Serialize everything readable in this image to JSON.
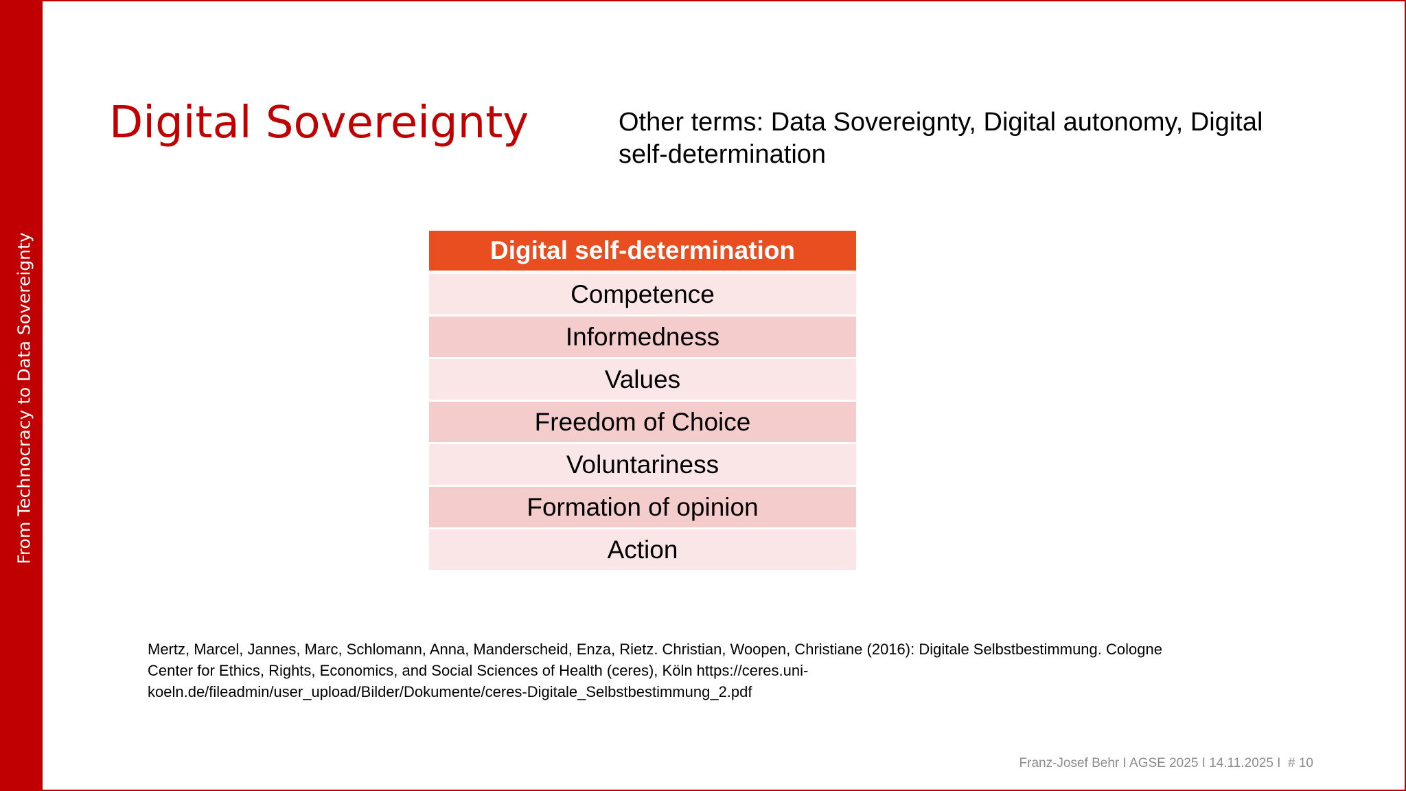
{
  "sidebar": {
    "text": "From Technocracy to Data Sovereignty"
  },
  "header": {
    "title": "Digital Sovereignty",
    "other_terms": [
      "Other terms: Data Sovereignty, Digital autonomy, Digital",
      "self-determination"
    ]
  },
  "table": {
    "header": "Digital self-determination",
    "rows": [
      "Competence",
      "Informedness",
      "Values",
      "Freedom of Choice",
      "Voluntariness",
      "Formation of opinion",
      "Action"
    ]
  },
  "citation": {
    "lines": [
      "Mertz, Marcel, Jannes, Marc, Schlomann, Anna, Manderscheid, Enza, Rietz. Christian, Woopen, Christiane (2016): Digitale Selbstbestimmung. Cologne",
      "Center for Ethics, Rights, Economics, and Social Sciences of Health (ceres), Köln https://ceres.uni-",
      "koeln.de/fileadmin/user_upload/Bilder/Dokumente/ceres-Digitale_Selbstbestimmung_2.pdf"
    ]
  },
  "footer": {
    "text": "Franz-Josef Behr I AGSE 2025 I 14.11.2025 I  # 10"
  }
}
